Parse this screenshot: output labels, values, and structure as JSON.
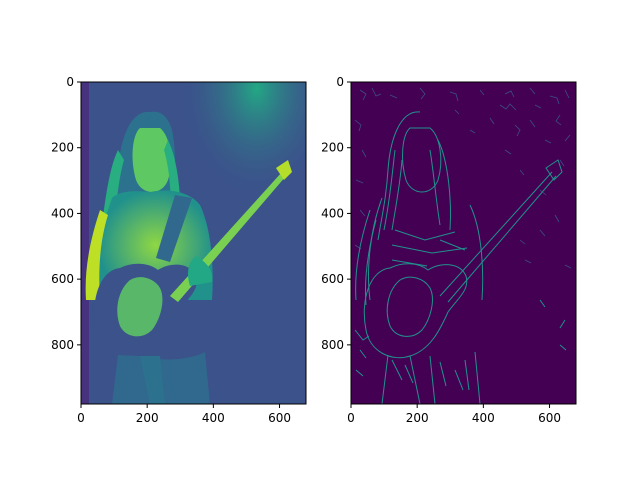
{
  "chart_data": [
    {
      "type": "heatmap",
      "title": "",
      "xlabel": "",
      "ylabel": "",
      "xlim": [
        0,
        680
      ],
      "ylim": [
        980,
        0
      ],
      "x_ticks": [
        0,
        200,
        400,
        600
      ],
      "y_ticks": [
        0,
        200,
        400,
        600,
        800
      ],
      "colormap": "viridis",
      "content": "grayscale guitarist photo",
      "grid": false
    },
    {
      "type": "heatmap",
      "title": "",
      "xlabel": "",
      "ylabel": "",
      "xlim": [
        0,
        680
      ],
      "ylim": [
        980,
        0
      ],
      "x_ticks": [
        0,
        200,
        400,
        600
      ],
      "y_ticks": [
        0,
        200,
        400,
        600,
        800
      ],
      "colormap": "viridis",
      "content": "edge map of the photo",
      "grid": false
    }
  ],
  "colors": {
    "viridis_dark": "#440154",
    "viridis_mid": "#21918c",
    "viridis_blue": "#3b528b",
    "viridis_green": "#5ec962",
    "viridis_yellow": "#fde725"
  }
}
